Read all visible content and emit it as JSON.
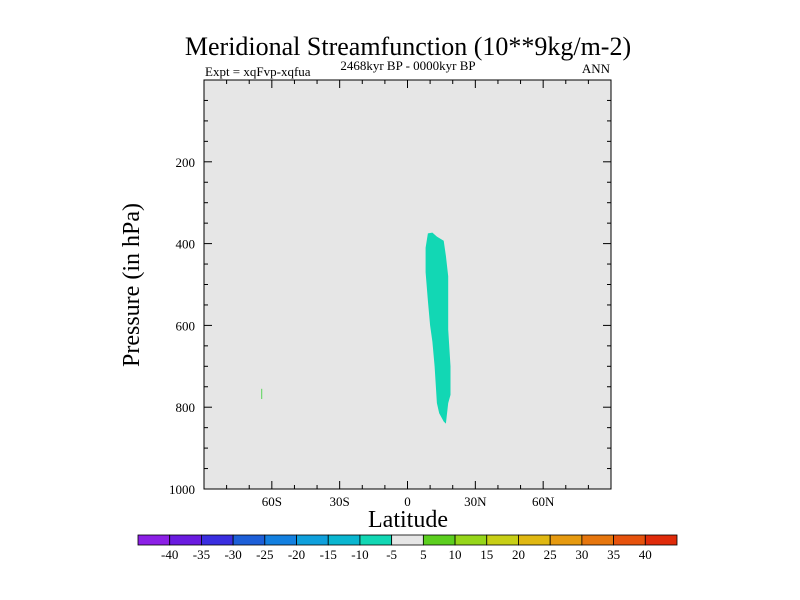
{
  "chart_data": {
    "type": "contour",
    "title": "Meridional Streamfunction (10**9kg/m-2)",
    "subtitle_left": "Expt = xqFvp-xqfua",
    "subtitle_center": "2468kyr BP - 0000kyr BP",
    "subtitle_right": "ANN",
    "xlabel": "Latitude",
    "ylabel": "Pressure (in hPa)",
    "xlim": [
      -90,
      90
    ],
    "ylim": [
      1000,
      0
    ],
    "x_ticks": [
      {
        "value": -60,
        "label": "60S"
      },
      {
        "value": -30,
        "label": "30S"
      },
      {
        "value": 0,
        "label": "0"
      },
      {
        "value": 30,
        "label": "30N"
      },
      {
        "value": 60,
        "label": "60N"
      }
    ],
    "y_ticks": [
      {
        "value": 200,
        "label": "200"
      },
      {
        "value": 400,
        "label": "400"
      },
      {
        "value": 600,
        "label": "600"
      },
      {
        "value": 800,
        "label": "800"
      },
      {
        "value": 1000,
        "label": "1000"
      }
    ],
    "background_color": "#e6e6e6",
    "regions": [
      {
        "name": "negative-cell-5-to-10",
        "color": "#12d7b4",
        "points": [
          [
            9,
            375
          ],
          [
            11,
            373
          ],
          [
            13,
            383
          ],
          [
            16,
            393
          ],
          [
            17,
            430
          ],
          [
            18,
            480
          ],
          [
            18,
            610
          ],
          [
            19,
            700
          ],
          [
            19,
            770
          ],
          [
            18,
            790
          ],
          [
            17,
            840
          ],
          [
            16,
            835
          ],
          [
            14,
            815
          ],
          [
            13,
            790
          ],
          [
            12,
            700
          ],
          [
            11,
            640
          ],
          [
            10,
            600
          ],
          [
            9,
            540
          ],
          [
            8,
            470
          ],
          [
            8,
            410
          ]
        ]
      }
    ],
    "line_marks": [
      {
        "name": "small-positive-marker",
        "color": "#6fd86f",
        "x": -64.5,
        "y1": 755,
        "y2": 780
      }
    ],
    "colorbar": {
      "levels": [
        "-40",
        "-35",
        "-30",
        "-25",
        "-20",
        "-15",
        "-10",
        "-5",
        "5",
        "10",
        "15",
        "20",
        "25",
        "30",
        "35",
        "40"
      ],
      "colors": [
        "#8c20e6",
        "#6a1be0",
        "#3a2ee0",
        "#1d5fd8",
        "#1380e0",
        "#0fa0dc",
        "#0ab6d0",
        "#12d7b4",
        "#e6e6e6",
        "#5ccf1f",
        "#96d61a",
        "#c8cf16",
        "#e0b812",
        "#e69a10",
        "#e6760e",
        "#e6520c",
        "#e02b0a"
      ]
    }
  }
}
